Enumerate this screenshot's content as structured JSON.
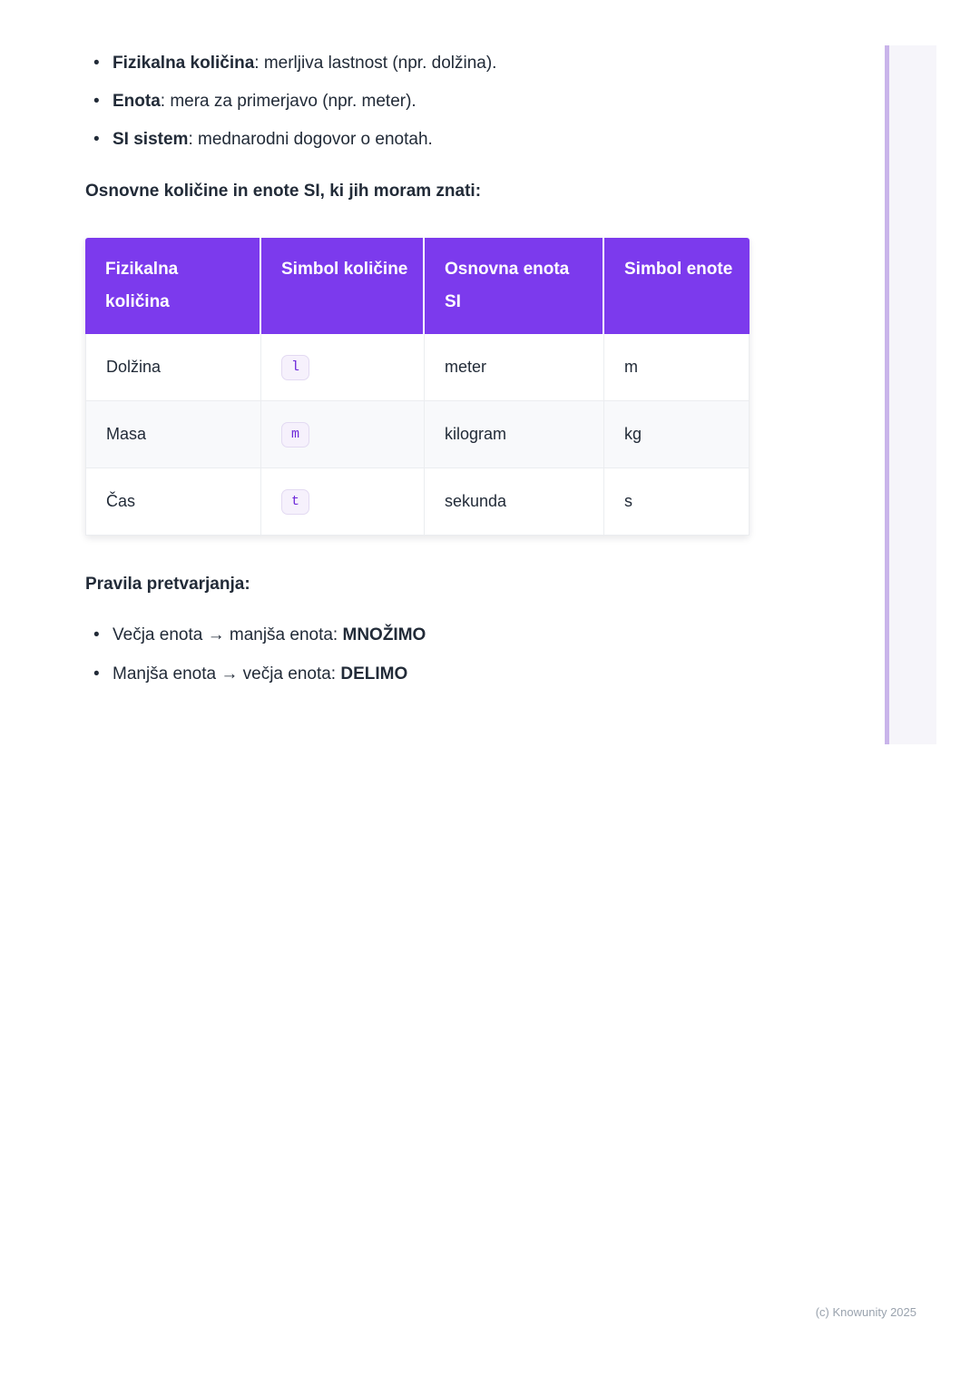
{
  "intro": {
    "items": [
      {
        "term": "Fizikalna količina",
        "rest": ": merljiva lastnost (npr. dolžina)."
      },
      {
        "term": "Enota",
        "rest": ": mera za primerjavo (npr. meter)."
      },
      {
        "term": "SI sistem",
        "rest": ": mednarodni dogovor o enotah."
      }
    ]
  },
  "sections": {
    "si_heading": "Osnovne količine in enote SI, ki jih moram znati:",
    "rules_heading": "Pravila pretvarjanja:"
  },
  "table": {
    "headers": [
      "Fizikalna količina",
      "Simbol količine",
      "Osnovna enota SI",
      "Simbol enote"
    ],
    "rows": [
      {
        "quantity": "Dolžina",
        "symbol": "l",
        "unit": "meter",
        "unit_symbol": "m"
      },
      {
        "quantity": "Masa",
        "symbol": "m",
        "unit": "kilogram",
        "unit_symbol": "kg"
      },
      {
        "quantity": "Čas",
        "symbol": "t",
        "unit": "sekunda",
        "unit_symbol": "s"
      }
    ]
  },
  "rules": {
    "items": [
      {
        "text": "Večja enota → manjša enota: ",
        "bold": "MNOŽIMO"
      },
      {
        "text": "Manjša enota → večja enota: ",
        "bold": "DELIMO"
      }
    ]
  },
  "footer": {
    "copyright": "(c) Knowunity 2025"
  },
  "colors": {
    "accent_purple": "#7c3aed",
    "chip_bg": "#f6f1fc",
    "chip_border": "#e3daf2",
    "chip_text": "#6d28d9",
    "stripe": "#f8f9fb",
    "panel_bg": "#f6f5fa",
    "panel_border": "#c9b4ea",
    "text": "#222b38",
    "muted": "#9aa3ae"
  }
}
